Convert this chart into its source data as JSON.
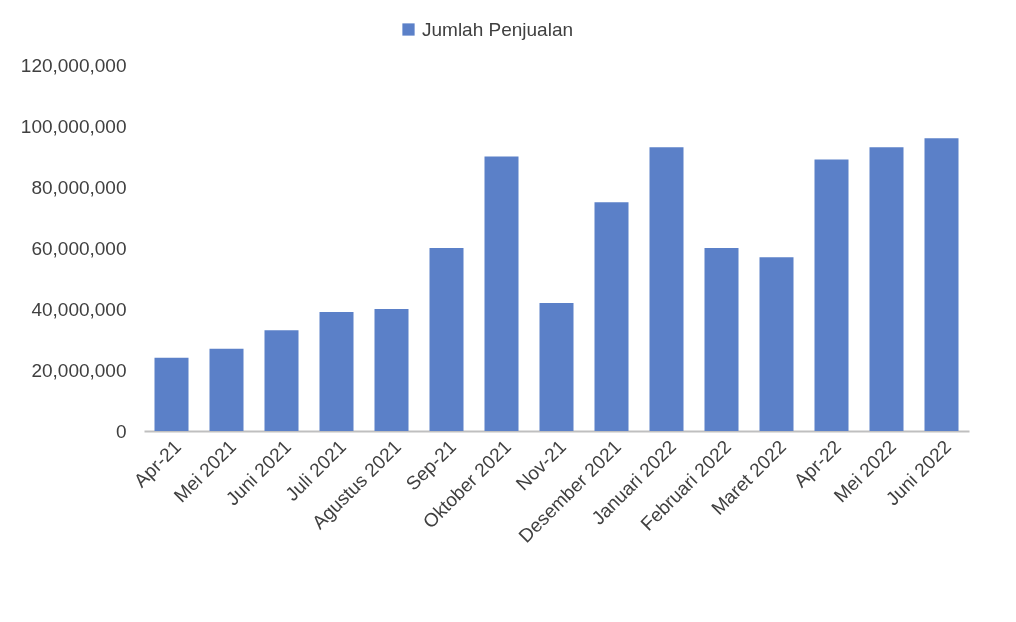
{
  "chart_data": {
    "type": "bar",
    "categories": [
      "Apr-21",
      "Mei 2021",
      "Juni 2021",
      "Juli 2021",
      "Agustus 2021",
      "Sep-21",
      "Oktober 2021",
      "Nov-21",
      "Desember 2021",
      "Januari 2022",
      "Februari 2022",
      "Maret 2022",
      "Apr-22",
      "Mei 2022",
      "Juni 2022"
    ],
    "series": [
      {
        "name": "Jumlah Penjualan",
        "color": "#5b80c8",
        "values": [
          24000000,
          27000000,
          33000000,
          39000000,
          40000000,
          60000000,
          90000000,
          42000000,
          75000000,
          93000000,
          60000000,
          57000000,
          89000000,
          93000000,
          96000000
        ]
      }
    ],
    "ylim": [
      0,
      120000000
    ],
    "yticks": [
      0,
      {
        "value": 20000000,
        "label": "20,000,000"
      },
      {
        "value": 40000000,
        "label": "40,000,000"
      },
      {
        "value": 60000000,
        "label": "60,000,000"
      },
      {
        "value": 80000000,
        "label": "80,000,000"
      },
      {
        "value": 100000000,
        "label": "100,000,000"
      },
      {
        "value": 120000000,
        "label": "120,000,000"
      }
    ],
    "grid": false,
    "legend": "top"
  }
}
